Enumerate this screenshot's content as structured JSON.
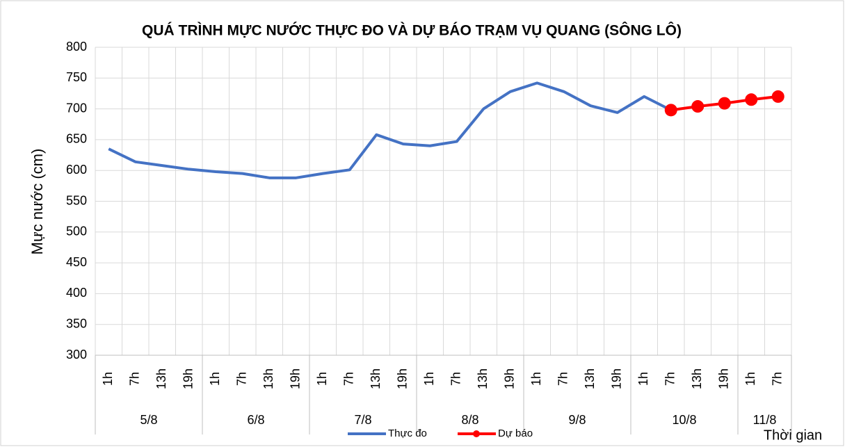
{
  "chart_data": {
    "type": "line",
    "title": "QUÁ TRÌNH MỰC NƯỚC THỰC ĐO VÀ DỰ BÁO TRẠM VỤ QUANG (SÔNG LÔ)",
    "ylabel": "Mực nước (cm)",
    "xlabel": "Thời gian",
    "groups": [
      {
        "label": "5/8",
        "categories": [
          "1h",
          "7h",
          "13h",
          "19h"
        ]
      },
      {
        "label": "6/8",
        "categories": [
          "1h",
          "7h",
          "13h",
          "19h"
        ]
      },
      {
        "label": "7/8",
        "categories": [
          "1h",
          "7h",
          "13h",
          "19h"
        ]
      },
      {
        "label": "8/8",
        "categories": [
          "1h",
          "7h",
          "13h",
          "19h"
        ]
      },
      {
        "label": "9/8",
        "categories": [
          "1h",
          "7h",
          "13h",
          "19h"
        ]
      },
      {
        "label": "10/8",
        "categories": [
          "1h",
          "7h",
          "13h",
          "19h"
        ]
      },
      {
        "label": "11/8",
        "categories": [
          "1h",
          "7h"
        ]
      }
    ],
    "series": [
      {
        "name": "Thực đo",
        "color": "#4472c4",
        "markers": false,
        "values": [
          635,
          614,
          608,
          602,
          598,
          595,
          588,
          588,
          595,
          601,
          658,
          643,
          640,
          647,
          700,
          728,
          742,
          728,
          705,
          694,
          720,
          698,
          null,
          null,
          null,
          null
        ]
      },
      {
        "name": "Dự báo",
        "color": "#ff0000",
        "markers": true,
        "values": [
          null,
          null,
          null,
          null,
          null,
          null,
          null,
          null,
          null,
          null,
          null,
          null,
          null,
          null,
          null,
          null,
          null,
          null,
          null,
          null,
          null,
          698,
          704,
          709,
          715,
          720
        ]
      }
    ],
    "ylim": [
      300,
      800
    ],
    "yticks": [
      300,
      350,
      400,
      450,
      500,
      550,
      600,
      650,
      700,
      750,
      800
    ],
    "grid": true
  }
}
